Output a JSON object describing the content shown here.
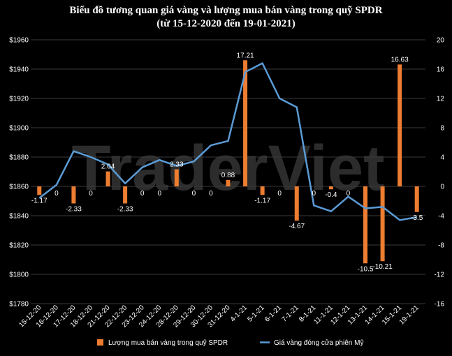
{
  "chart_data": {
    "type": "bar+line",
    "title": "Biểu đồ tương quan giá vàng và lượng mua bán vàng trong quỹ SPDR",
    "subtitle": "(từ 15-12-2020 đến 19-01-2021)",
    "watermark": "TraderViet",
    "categories": [
      "15-12-20",
      "16-12-20",
      "17-12-20",
      "18-12-20",
      "21-12-20",
      "22-12-20",
      "23-12-20",
      "24-12-20",
      "28-12-20",
      "29-12-20",
      "30-12-20",
      "31-12-20",
      "4-1-21",
      "5-1-21",
      "6-1-21",
      "7-1-21",
      "8-1-21",
      "11-1-21",
      "12-1-21",
      "13-1-21",
      "14-1-21",
      "15-1-21",
      "19-1-21"
    ],
    "series": [
      {
        "name": "Lượng mua bán vàng trong quỹ  SPDR",
        "kind": "bar",
        "axis": "right",
        "color": "#ED7D31",
        "values": [
          -1.17,
          0,
          -2.33,
          0,
          2.04,
          -2.33,
          0,
          0,
          2.33,
          0,
          0,
          0.88,
          17.21,
          -1.17,
          0,
          -4.67,
          0,
          -0.4,
          0,
          -10.5,
          -10.21,
          16.63,
          -3.5
        ],
        "labels": [
          "-1.17",
          "0",
          "-2.33",
          "0",
          "2.04",
          "-2.33",
          "0",
          "0",
          "2.33",
          "0",
          "0",
          "0.88",
          "17.21",
          "-1.17",
          "0",
          "-4.67",
          "0",
          "-0.4",
          "0",
          "-10.5",
          "-10.21",
          "16.63",
          "-3.5"
        ]
      },
      {
        "name": "Giá vàng đóng cửa phiên Mỹ",
        "kind": "line",
        "axis": "left",
        "color": "#5B9BD5",
        "values": [
          1852,
          1861,
          1884,
          1880,
          1875,
          1862,
          1873,
          1878,
          1874,
          1877,
          1888,
          1891,
          1938,
          1944,
          1920,
          1914,
          1847,
          1843,
          1853,
          1845,
          1846,
          1837,
          1839
        ]
      }
    ],
    "left_axis": {
      "min": 1780,
      "max": 1960,
      "step": 20,
      "tick_labels": [
        "$1780",
        "$1800",
        "$1820",
        "$1840",
        "$1860",
        "$1880",
        "$1900",
        "$1920",
        "$1940",
        "$1960"
      ]
    },
    "right_axis": {
      "min": -16,
      "max": 20,
      "step": 4,
      "tick_labels": [
        "-16",
        "-12",
        "-8",
        "-4",
        "0",
        "4",
        "8",
        "12",
        "16",
        "20"
      ]
    },
    "grid": true,
    "legend_position": "bottom"
  }
}
